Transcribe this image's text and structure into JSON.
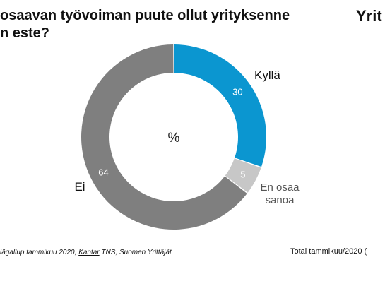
{
  "title": {
    "line1": "osaavan työvoiman puute ollut yrityksenne",
    "line2": "n este?"
  },
  "brand": "Yrit",
  "source": {
    "prefix": "iägallup tammikuu 2020, ",
    "link": "Kantar",
    "suffix": " TNS, Suomen Yrittäjät"
  },
  "total_note": "Total tammikuu/2020 (",
  "chart_data": {
    "type": "pie",
    "donut": true,
    "center_label": "%",
    "categories": [
      "Kyllä",
      "En osaa sanoa",
      "Ei"
    ],
    "values": [
      30,
      5,
      64
    ],
    "value_labels": [
      "30",
      "5",
      "64"
    ],
    "colors": [
      "#0b96d0",
      "#c7c7c7",
      "#7f7f7f"
    ],
    "legend": "labels next to segments"
  }
}
